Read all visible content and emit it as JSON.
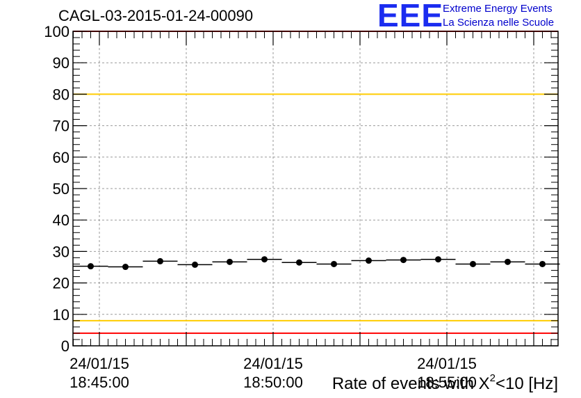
{
  "header": {
    "run_title": "CAGL-03-2015-01-24-00090",
    "logo_mark": "EEE",
    "logo_line1": "Extreme Energy Events",
    "logo_line2": "La Scienza nelle Scuole"
  },
  "chart_data": {
    "type": "scatter",
    "title": "CAGL-03-2015-01-24-00090",
    "xlabel_prefix": "Rate of events with X",
    "xlabel_sup": "2",
    "xlabel_suffix": "<10 [Hz]",
    "ylabel": "",
    "ylim": [
      0,
      100
    ],
    "yticks": [
      0,
      10,
      20,
      30,
      40,
      50,
      60,
      70,
      80,
      90,
      100
    ],
    "grid": true,
    "x_tick_labels": [
      {
        "date": "24/01/15",
        "time": "18:45:00"
      },
      {
        "date": "24/01/15",
        "time": "18:50:00"
      },
      {
        "date": "24/01/15",
        "time": "18:55:00"
      }
    ],
    "bin_width_s": 60,
    "series": [
      {
        "x": [
          "18:44:45",
          "18:45:45",
          "18:46:45",
          "18:47:45",
          "18:48:45",
          "18:49:45",
          "18:50:45",
          "18:51:45",
          "18:52:45",
          "18:53:45",
          "18:54:45",
          "18:55:45",
          "18:56:45",
          "18:57:45"
        ],
        "values": [
          25.3,
          25.1,
          26.9,
          25.8,
          26.7,
          27.5,
          26.5,
          26.0,
          27.1,
          27.3,
          27.5,
          26.0,
          26.7,
          26.0
        ]
      }
    ],
    "reference_lines": [
      {
        "y": 100,
        "color": "#ff0000"
      },
      {
        "y": 80,
        "color": "#ffcc00"
      },
      {
        "y": 8,
        "color": "#ffcc00"
      },
      {
        "y": 4,
        "color": "#ff0000"
      }
    ]
  }
}
